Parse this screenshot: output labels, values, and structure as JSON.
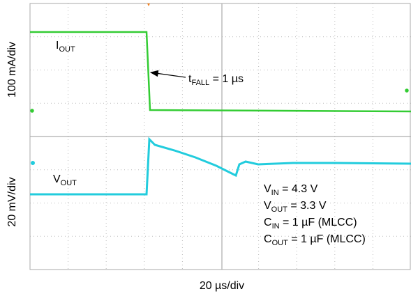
{
  "axes": {
    "top_scale": "100 mA/div",
    "bottom_scale": "20 mV/div",
    "time_scale": "20 µs/div"
  },
  "traces": {
    "current": {
      "symbol": "I",
      "subscript": "OUT"
    },
    "voltage": {
      "symbol": "V",
      "subscript": "OUT"
    }
  },
  "fall_note": {
    "symbol": "t",
    "subscript": "FALL",
    "text": " = 1 µs"
  },
  "conditions": [
    {
      "symbol": "V",
      "subscript": "IN",
      "text": " = 4.3 V"
    },
    {
      "symbol": "V",
      "subscript": "OUT",
      "text": " = 3.3 V"
    },
    {
      "symbol": "C",
      "subscript": "IN",
      "text": " = 1 µF (MLCC)"
    },
    {
      "symbol": "C",
      "subscript": "OUT",
      "text": " = 1 µF (MLCC)"
    }
  ]
}
